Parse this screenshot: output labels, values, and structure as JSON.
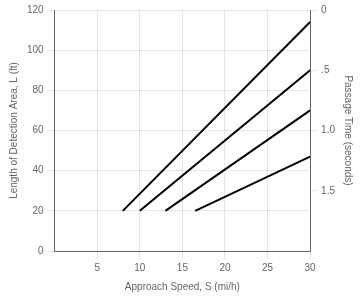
{
  "chart_data": {
    "type": "line",
    "xlabel": "Approach Speed, S (mi/h)",
    "ylabel": "Length of Detection Area, L (ft)",
    "y2label": "Passage Time (seconds)",
    "color": "black",
    "series": [
      {
        "x": [
          8.0,
          30
        ],
        "values": [
          20,
          114
        ]
      },
      {
        "x": [
          10.0,
          30
        ],
        "values": [
          20,
          90
        ]
      },
      {
        "x": [
          13.0,
          30
        ],
        "values": [
          20,
          70
        ]
      },
      {
        "x": [
          16.5,
          30
        ],
        "values": [
          20,
          47
        ]
      }
    ],
    "xlim": [
      0,
      30
    ],
    "xticks": [
      5,
      10,
      15,
      20,
      25,
      30
    ],
    "ylim": [
      0,
      120
    ],
    "yticks": [
      0,
      20,
      40,
      60,
      80,
      100,
      120
    ],
    "y2lim": [
      2.0,
      0.0
    ],
    "y2ticks": [
      0,
      {
        "value": 0.5,
        "label": ".5"
      },
      {
        "value": 1.0,
        "label": "1.0"
      },
      {
        "value": 1.5,
        "label": "1.5"
      }
    ],
    "grid": true
  }
}
